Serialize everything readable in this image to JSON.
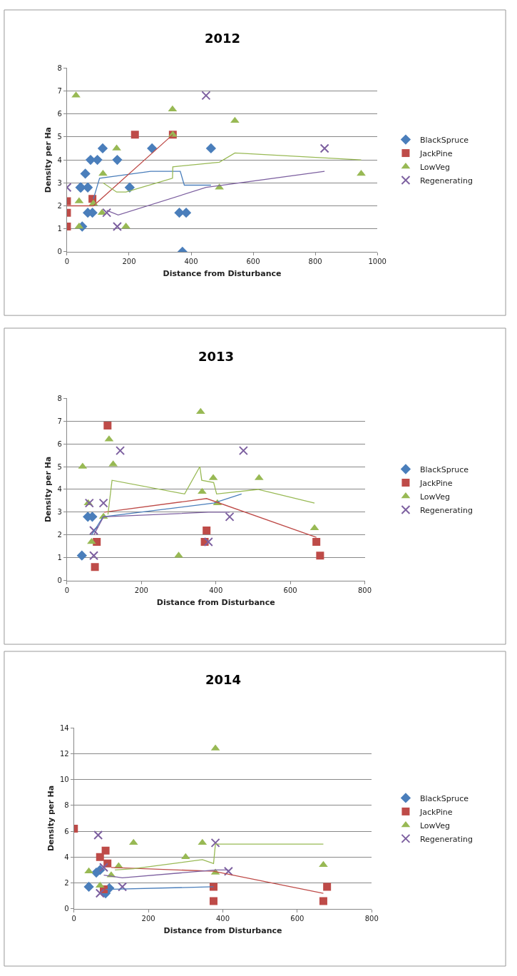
{
  "chart_data": [
    {
      "type": "scatter",
      "title": "2012",
      "xlabel": "Distance from Disturbance",
      "ylabel": "Density per Ha",
      "xlim": [
        0,
        1000
      ],
      "xticks": [
        0,
        200,
        400,
        600,
        800,
        1000
      ],
      "ylim": [
        0,
        8
      ],
      "yticks": [
        0,
        1,
        2,
        3,
        4,
        5,
        6,
        7,
        8
      ],
      "grid": "y",
      "legend": "right",
      "series": [
        {
          "name": "BlackSpruce",
          "color": "#4a7ebb",
          "marker": "diamond",
          "x": [
            43,
            49,
            45,
            67,
            59,
            67,
            82,
            76,
            98,
            115,
            162,
            202,
            274,
            362,
            384,
            372,
            464
          ],
          "values": [
            2.8,
            1.1,
            2.8,
            2.8,
            3.4,
            1.7,
            1.7,
            4.0,
            4.0,
            4.5,
            4.0,
            2.8,
            4.5,
            1.7,
            1.7,
            0,
            4.5
          ]
        },
        {
          "name": "JackPine",
          "color": "#be4b48",
          "marker": "square",
          "x": [
            0,
            0,
            0,
            82,
            219,
            341
          ],
          "values": [
            2.2,
            1.7,
            1.1,
            2.3,
            5.1,
            5.1
          ]
        },
        {
          "name": "LowVeg",
          "color": "#98b954",
          "marker": "triangle",
          "x": [
            29,
            39,
            39,
            85,
            113,
            116,
            160,
            190,
            340,
            341,
            491,
            541,
            948
          ],
          "values": [
            6.8,
            2.2,
            1.1,
            2.1,
            1.7,
            3.4,
            4.5,
            1.1,
            6.2,
            5.1,
            2.8,
            5.7,
            3.4
          ]
        },
        {
          "name": "Regenerating",
          "color": "#7d60a0",
          "marker": "cross",
          "x": [
            0,
            128,
            162,
            448,
            830
          ],
          "values": [
            2.8,
            1.7,
            1.1,
            6.8,
            4.5
          ]
        },
        {
          "type": "line",
          "color": "#4a7ebb",
          "x": [
            85,
            105,
            160,
            270,
            365,
            378,
            464
          ],
          "values": [
            2.3,
            3.2,
            3.3,
            3.5,
            3.5,
            2.9,
            2.9
          ]
        },
        {
          "type": "line",
          "color": "#be4b48",
          "x": [
            0,
            85,
            341
          ],
          "values": [
            2.0,
            2.0,
            5.1
          ]
        },
        {
          "type": "line",
          "color": "#98b954",
          "x": [
            116,
            160,
            190,
            340,
            341,
            491,
            541,
            948
          ],
          "values": [
            3.0,
            2.6,
            2.6,
            3.2,
            3.7,
            3.9,
            4.3,
            4.0
          ]
        },
        {
          "type": "line",
          "color": "#7d60a0",
          "x": [
            128,
            165,
            448,
            830
          ],
          "values": [
            1.8,
            1.6,
            2.8,
            3.5
          ]
        }
      ]
    },
    {
      "type": "scatter",
      "title": "2013",
      "xlabel": "Distance from Disturbance",
      "ylabel": "Density per Ha",
      "xlim": [
        0,
        800
      ],
      "xticks": [
        0,
        200,
        400,
        600,
        800
      ],
      "ylim": [
        0,
        8
      ],
      "yticks": [
        0,
        1,
        2,
        3,
        4,
        5,
        6,
        7,
        8
      ],
      "grid": "y",
      "legend": "right",
      "series": [
        {
          "name": "BlackSpruce",
          "color": "#4a7ebb",
          "marker": "diamond",
          "x": [
            40,
            56,
            68
          ],
          "values": [
            1.1,
            2.8,
            2.8
          ]
        },
        {
          "name": "JackPine",
          "color": "#be4b48",
          "marker": "square",
          "x": [
            75,
            80,
            109,
            370,
            375,
            670,
            680
          ],
          "values": [
            0.6,
            1.7,
            6.8,
            1.7,
            2.2,
            1.7,
            1.1
          ]
        },
        {
          "name": "LowVeg",
          "color": "#98b954",
          "marker": "triangle",
          "x": [
            42,
            57,
            66,
            98,
            113,
            124,
            300,
            359,
            363,
            393,
            404,
            516,
            665
          ],
          "values": [
            5.0,
            3.4,
            1.7,
            2.8,
            6.2,
            5.1,
            1.1,
            7.4,
            3.9,
            4.5,
            3.4,
            4.5,
            2.3
          ]
        },
        {
          "name": "Regenerating",
          "color": "#7d60a0",
          "marker": "cross",
          "x": [
            60,
            72,
            72,
            98,
            143,
            380,
            437,
            474
          ],
          "values": [
            3.4,
            2.2,
            1.1,
            3.4,
            5.7,
            1.7,
            2.8,
            5.7
          ]
        },
        {
          "type": "line",
          "color": "#4a7ebb",
          "x": [
            66,
            97,
            394,
            469
          ],
          "values": [
            2.0,
            2.8,
            3.4,
            3.8
          ]
        },
        {
          "type": "line",
          "color": "#be4b48",
          "x": [
            100,
            375,
            670
          ],
          "values": [
            3.0,
            3.6,
            1.9
          ]
        },
        {
          "type": "line",
          "color": "#98b954",
          "x": [
            110,
            121,
            316,
            357,
            362,
            394,
            402,
            513,
            665
          ],
          "values": [
            2.9,
            4.4,
            3.8,
            5.0,
            4.4,
            4.3,
            3.8,
            4.0,
            3.4
          ]
        },
        {
          "type": "line",
          "color": "#7d60a0",
          "x": [
            72,
            98,
            380,
            437
          ],
          "values": [
            2.0,
            2.8,
            3.0,
            3.0
          ]
        }
      ]
    },
    {
      "type": "scatter",
      "title": "2014",
      "xlabel": "Distance from Disturbance",
      "ylabel": "Density per Ha",
      "xlim": [
        0,
        800
      ],
      "xticks": [
        0,
        200,
        400,
        600,
        800
      ],
      "ylim": [
        0,
        14
      ],
      "yticks": [
        0,
        2,
        4,
        6,
        8,
        10,
        12,
        14
      ],
      "grid": "y",
      "legend": "right",
      "series": [
        {
          "name": "BlackSpruce",
          "color": "#4a7ebb",
          "marker": "diamond",
          "x": [
            40,
            60,
            70,
            85,
            95
          ],
          "values": [
            1.7,
            2.8,
            3.0,
            1.2,
            1.6
          ]
        },
        {
          "name": "JackPine",
          "color": "#be4b48",
          "marker": "square",
          "x": [
            0,
            70,
            80,
            85,
            90,
            375,
            375,
            670,
            680
          ],
          "values": [
            6.2,
            4.0,
            1.5,
            4.5,
            3.5,
            1.7,
            0.6,
            0.6,
            1.7
          ]
        },
        {
          "name": "LowVeg",
          "color": "#98b954",
          "marker": "triangle",
          "x": [
            40,
            70,
            100,
            120,
            160,
            300,
            345,
            380,
            380,
            670
          ],
          "values": [
            2.9,
            1.8,
            2.6,
            3.3,
            5.1,
            4.0,
            5.1,
            12.4,
            2.8,
            3.4
          ]
        },
        {
          "name": "Regenerating",
          "color": "#7d60a0",
          "marker": "cross",
          "x": [
            65,
            70,
            80,
            130,
            380,
            415
          ],
          "values": [
            5.7,
            1.2,
            3.2,
            1.7,
            5.1,
            2.9
          ]
        },
        {
          "type": "line",
          "color": "#4a7ebb",
          "x": [
            85,
            375
          ],
          "values": [
            1.5,
            1.7
          ]
        },
        {
          "type": "line",
          "color": "#be4b48",
          "x": [
            100,
            375,
            670
          ],
          "values": [
            3.2,
            2.9,
            1.2
          ]
        },
        {
          "type": "line",
          "color": "#98b954",
          "x": [
            110,
            160,
            345,
            375,
            380,
            670
          ],
          "values": [
            3.0,
            3.1,
            3.8,
            3.5,
            5.0,
            5.0
          ]
        },
        {
          "type": "line",
          "color": "#7d60a0",
          "x": [
            80,
            130,
            380,
            415
          ],
          "values": [
            2.6,
            2.4,
            3.0,
            3.0
          ]
        }
      ]
    }
  ]
}
